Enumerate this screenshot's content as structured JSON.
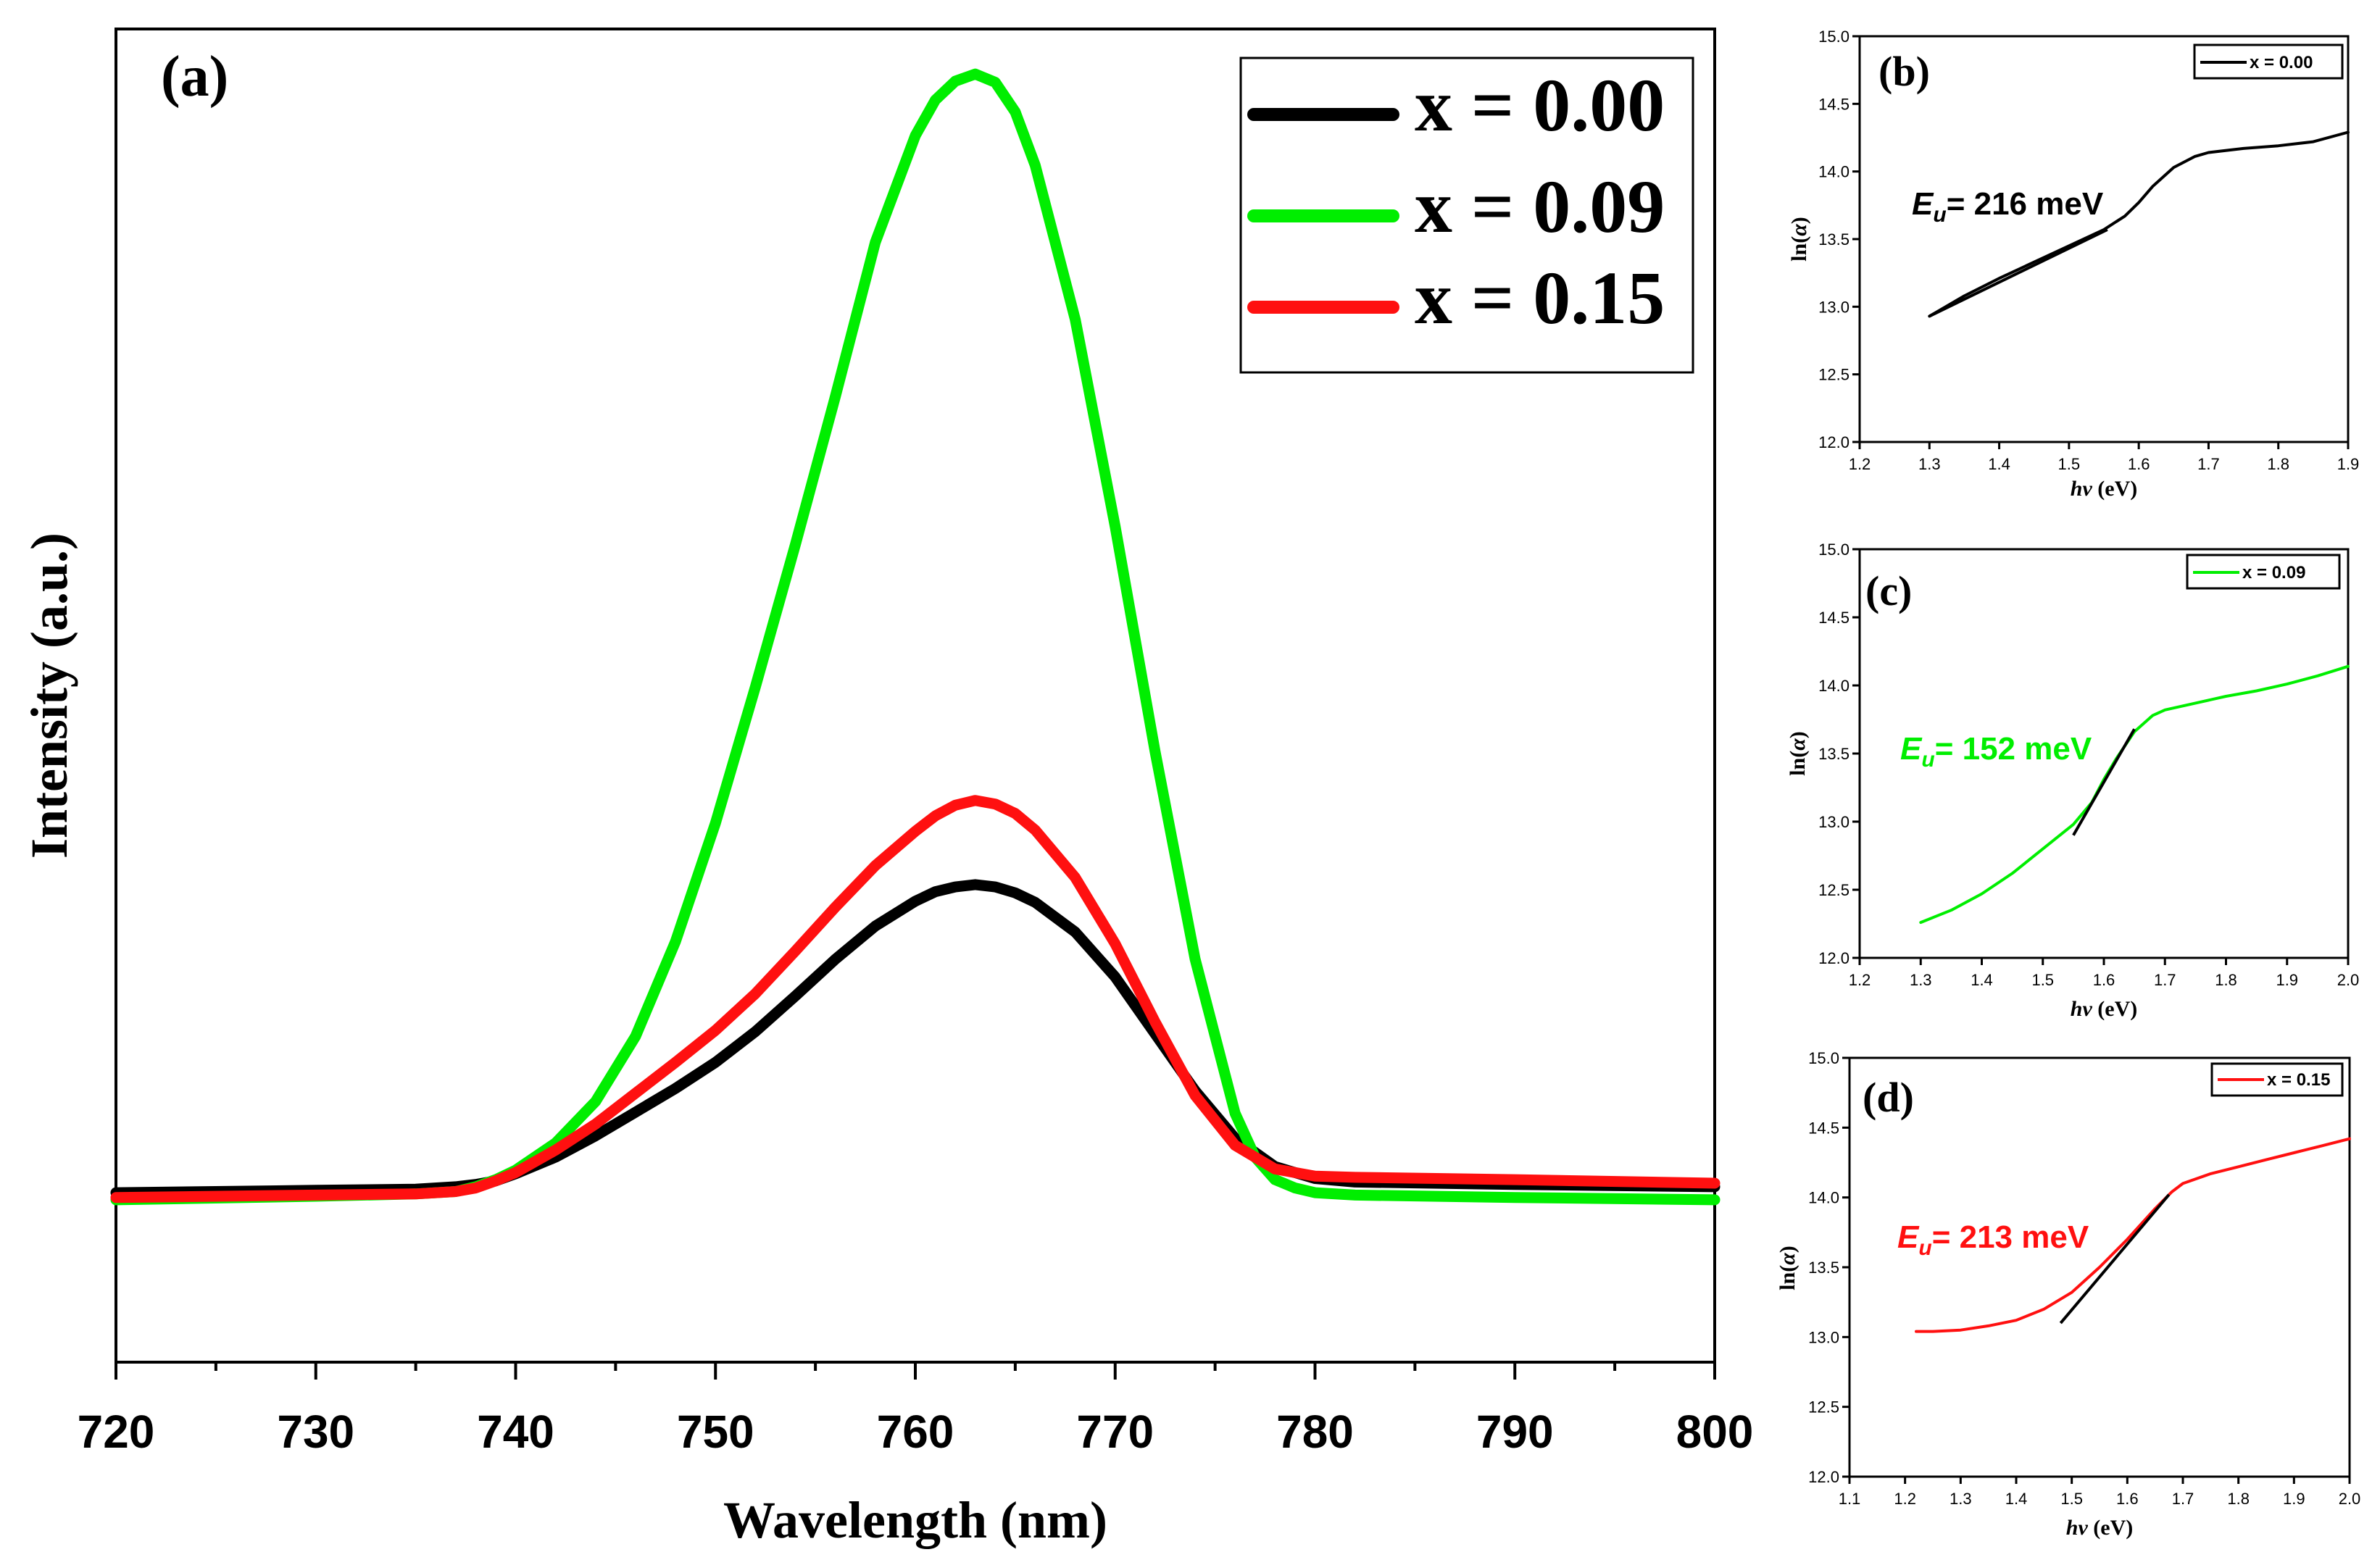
{
  "colors": {
    "black": "#000000",
    "green": "#00ee00",
    "red": "#ff1010"
  },
  "chart_data": [
    {
      "id": "a",
      "type": "line",
      "panel_label": "(a)",
      "title": "",
      "xlabel": "Wavelength (nm)",
      "ylabel": "Intensity (a.u.)",
      "xlim": [
        720,
        800
      ],
      "ylim": [
        0,
        100
      ],
      "xticks": [
        720,
        730,
        740,
        750,
        760,
        770,
        780,
        790,
        800
      ],
      "xtick_labels": [
        "720",
        "730",
        "740",
        "750",
        "760",
        "770",
        "780",
        "790",
        "800"
      ],
      "yticks_shown": false,
      "legend_position": "top-right",
      "series": [
        {
          "name": "x = 0.00",
          "color": "#000000",
          "x": [
            720,
            730,
            735,
            737,
            738,
            739,
            740,
            742,
            744,
            746,
            748,
            750,
            752,
            754,
            756,
            758,
            760,
            761,
            762,
            763,
            764,
            765,
            766,
            768,
            770,
            772,
            774,
            776,
            778,
            780,
            782,
            790,
            800
          ],
          "y": [
            4.8,
            5.0,
            5.1,
            5.3,
            5.5,
            5.8,
            6.4,
            7.8,
            9.6,
            11.6,
            13.6,
            15.8,
            18.4,
            21.4,
            24.5,
            27.3,
            29.4,
            30.2,
            30.6,
            30.8,
            30.6,
            30.1,
            29.3,
            26.8,
            23.0,
            18.2,
            13.4,
            9.4,
            7.0,
            6.0,
            5.7,
            5.5,
            5.3
          ]
        },
        {
          "name": "x = 0.09",
          "color": "#00ee00",
          "x": [
            720,
            730,
            735,
            737,
            738,
            739,
            740,
            742,
            744,
            746,
            748,
            750,
            752,
            754,
            756,
            758,
            760,
            761,
            762,
            763,
            764,
            765,
            766,
            768,
            770,
            772,
            774,
            776,
            777,
            778,
            779,
            780,
            782,
            790,
            800
          ],
          "y": [
            4.2,
            4.5,
            4.7,
            4.9,
            5.3,
            5.9,
            6.7,
            9.0,
            12.5,
            18.0,
            26.0,
            36.0,
            47.5,
            59.5,
            72.0,
            85.0,
            94.0,
            97.0,
            98.6,
            99.2,
            98.5,
            96.0,
            91.5,
            78.5,
            61.0,
            42.0,
            24.5,
            11.5,
            7.8,
            5.9,
            5.2,
            4.8,
            4.6,
            4.4,
            4.2
          ]
        },
        {
          "name": "x = 0.15",
          "color": "#ff1010",
          "x": [
            720,
            730,
            735,
            737,
            738,
            739,
            740,
            742,
            744,
            746,
            748,
            750,
            752,
            754,
            756,
            758,
            760,
            761,
            762,
            763,
            764,
            765,
            766,
            768,
            770,
            772,
            774,
            776,
            778,
            780,
            782,
            790,
            800
          ],
          "y": [
            4.4,
            4.6,
            4.7,
            4.9,
            5.2,
            5.8,
            6.5,
            8.4,
            10.6,
            13.2,
            15.8,
            18.5,
            21.6,
            25.2,
            28.9,
            32.4,
            35.3,
            36.6,
            37.5,
            37.9,
            37.6,
            36.8,
            35.4,
            31.4,
            25.8,
            19.2,
            13.0,
            8.8,
            6.8,
            6.2,
            6.1,
            5.9,
            5.6
          ]
        }
      ]
    },
    {
      "id": "b",
      "type": "line",
      "panel_label": "(b)",
      "xlabel": "hv (eV)",
      "ylabel": "ln(α)",
      "xlim": [
        1.2,
        1.9
      ],
      "ylim": [
        12.0,
        15.0
      ],
      "xtick_labels": [
        "1.2",
        "1.3",
        "1.4",
        "1.5",
        "1.6",
        "1.7",
        "1.8",
        "1.9"
      ],
      "ytick_labels": [
        "12.0",
        "12.5",
        "13.0",
        "13.5",
        "14.0",
        "14.5",
        "15.0"
      ],
      "legend_position": "top-right",
      "annotation": {
        "symbol": "E",
        "subscript": "u",
        "text": "= 216 meV",
        "color": "#000000"
      },
      "series": [
        {
          "name": "x = 0.00",
          "color": "#000000",
          "x": [
            1.3,
            1.35,
            1.4,
            1.45,
            1.5,
            1.55,
            1.58,
            1.6,
            1.62,
            1.65,
            1.68,
            1.7,
            1.75,
            1.8,
            1.85,
            1.9
          ],
          "y": [
            12.93,
            13.08,
            13.21,
            13.33,
            13.45,
            13.57,
            13.67,
            13.77,
            13.89,
            14.03,
            14.11,
            14.14,
            14.17,
            14.19,
            14.22,
            14.29
          ]
        },
        {
          "name": "fit",
          "color": "#000000",
          "x": [
            1.3,
            1.555
          ],
          "y": [
            12.93,
            13.57
          ]
        }
      ]
    },
    {
      "id": "c",
      "type": "line",
      "panel_label": "(c)",
      "xlabel": "hv (eV)",
      "ylabel": "ln(α)",
      "xlim": [
        1.2,
        2.0
      ],
      "ylim": [
        12.0,
        15.0
      ],
      "xtick_labels": [
        "1.2",
        "1.3",
        "1.4",
        "1.5",
        "1.6",
        "1.7",
        "1.8",
        "1.9",
        "2.0"
      ],
      "ytick_labels": [
        "12.0",
        "12.5",
        "13.0",
        "13.5",
        "14.0",
        "14.5",
        "15.0"
      ],
      "legend_position": "top-right",
      "annotation": {
        "symbol": "E",
        "subscript": "u",
        "text": "= 152 meV",
        "color": "#00ee00"
      },
      "series": [
        {
          "name": "x = 0.09",
          "color": "#00ee00",
          "x": [
            1.3,
            1.35,
            1.4,
            1.45,
            1.5,
            1.55,
            1.58,
            1.6,
            1.62,
            1.65,
            1.68,
            1.7,
            1.75,
            1.8,
            1.85,
            1.9,
            1.95,
            2.0
          ],
          "y": [
            12.26,
            12.35,
            12.47,
            12.62,
            12.8,
            12.98,
            13.14,
            13.31,
            13.46,
            13.66,
            13.78,
            13.82,
            13.87,
            13.92,
            13.96,
            14.01,
            14.07,
            14.14
          ]
        },
        {
          "name": "fit",
          "color": "#000000",
          "x": [
            1.55,
            1.65
          ],
          "y": [
            12.9,
            13.68
          ]
        }
      ]
    },
    {
      "id": "d",
      "type": "line",
      "panel_label": "(d)",
      "xlabel": "hv (eV)",
      "ylabel": "ln(α)",
      "xlim": [
        1.1,
        2.0
      ],
      "ylim": [
        12.0,
        15.0
      ],
      "xtick_labels": [
        "1.1",
        "1.2",
        "1.3",
        "1.4",
        "1.5",
        "1.6",
        "1.7",
        "1.8",
        "1.9",
        "2.0"
      ],
      "ytick_labels": [
        "12.0",
        "12.5",
        "13.0",
        "13.5",
        "14.0",
        "14.5",
        "15.0"
      ],
      "legend_position": "top-right",
      "annotation": {
        "symbol": "E",
        "subscript": "u",
        "text": "= 213 meV",
        "color": "#ff1010"
      },
      "series": [
        {
          "name": "x = 0.15",
          "color": "#ff1010",
          "x": [
            1.22,
            1.25,
            1.3,
            1.35,
            1.4,
            1.45,
            1.5,
            1.55,
            1.6,
            1.65,
            1.68,
            1.7,
            1.75,
            1.8,
            1.85,
            1.9,
            1.95,
            2.0
          ],
          "y": [
            13.04,
            13.04,
            13.05,
            13.08,
            13.12,
            13.2,
            13.32,
            13.5,
            13.7,
            13.92,
            14.04,
            14.1,
            14.17,
            14.22,
            14.27,
            14.32,
            14.37,
            14.42
          ]
        },
        {
          "name": "fit",
          "color": "#000000",
          "x": [
            1.48,
            1.675
          ],
          "y": [
            13.1,
            14.02
          ]
        }
      ]
    }
  ]
}
